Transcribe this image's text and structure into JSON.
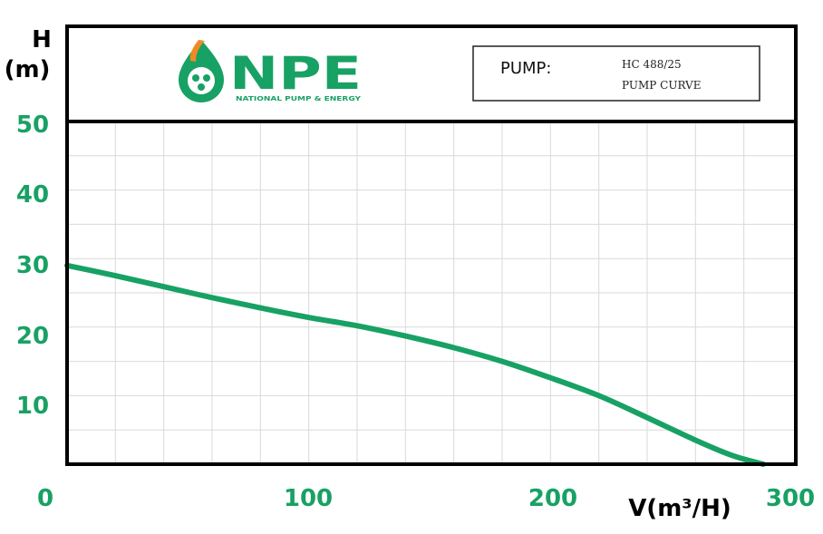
{
  "logo": {
    "letters": "NPE",
    "tagline": "NATIONAL PUMP & ENERGY",
    "colors": {
      "green": "#18a164",
      "orange": "#f08a24"
    }
  },
  "info_box": {
    "pump_label": "PUMP:",
    "model": "HC 488/25",
    "description": "PUMP CURVE"
  },
  "colors": {
    "curve": "#18a164",
    "tick_text": "#18a164",
    "frame": "#000000",
    "grid": "#d9d9d9"
  },
  "chart_data": {
    "type": "line",
    "xlabel": "V(m³/H)",
    "ylabel": [
      "H",
      "(m)"
    ],
    "xlim": [
      0,
      300
    ],
    "ylim": [
      0,
      50
    ],
    "x_ticks": [
      "0",
      "100",
      "200",
      "300"
    ],
    "y_ticks": [
      "10",
      "20",
      "30",
      "40",
      "50"
    ],
    "grid": true,
    "series": [
      {
        "x": [
          0,
          20,
          40,
          60,
          80,
          100,
          120,
          140,
          160,
          180,
          200,
          220,
          240,
          260,
          275,
          288
        ],
        "y": [
          29,
          27.5,
          25.9,
          24.3,
          22.8,
          21.4,
          20.2,
          18.7,
          17,
          15,
          12.6,
          10,
          6.8,
          3.5,
          1.3,
          0
        ]
      }
    ]
  }
}
